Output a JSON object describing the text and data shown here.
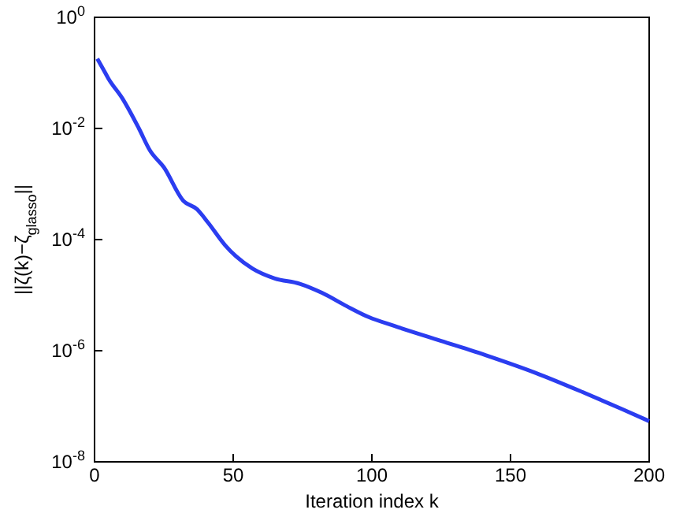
{
  "chart_data": {
    "type": "line",
    "xlabel": "Iteration index k",
    "ylabel": "||ζ(k)−ζ$_{glasso}$||",
    "log": "y",
    "grid": false,
    "xlim": [
      0,
      200
    ],
    "xticks": [
      0,
      50,
      100,
      150,
      200
    ],
    "ylim": [
      1e-08,
      1
    ],
    "yticks": [
      {
        "value": 1e-08,
        "label": "10$^{-8}$"
      },
      {
        "value": 1e-06,
        "label": "10$^{-6}$"
      },
      {
        "value": 0.0001,
        "label": "10$^{-4}$"
      },
      {
        "value": 0.01,
        "label": "10$^{-2}$"
      },
      {
        "value": 1,
        "label": "10$^{0}$"
      }
    ],
    "x": [
      1,
      3,
      5,
      10,
      16,
      20,
      25,
      32,
      37,
      41,
      47,
      51,
      57,
      65,
      74,
      82,
      91,
      99,
      108,
      125,
      142,
      159,
      176,
      190,
      200
    ],
    "series": [
      {
        "color": "#2b3df0",
        "values": [
          0.18,
          0.12,
          0.079,
          0.035,
          0.01,
          0.004,
          0.002,
          0.0005,
          0.00035,
          0.0002,
          8e-05,
          5e-05,
          3e-05,
          2e-05,
          1.6e-05,
          1.1e-05,
          6.3e-06,
          4e-06,
          2.8e-06,
          1.5e-06,
          8e-07,
          4e-07,
          1.8e-07,
          9e-08,
          5.4e-08
        ]
      }
    ]
  }
}
